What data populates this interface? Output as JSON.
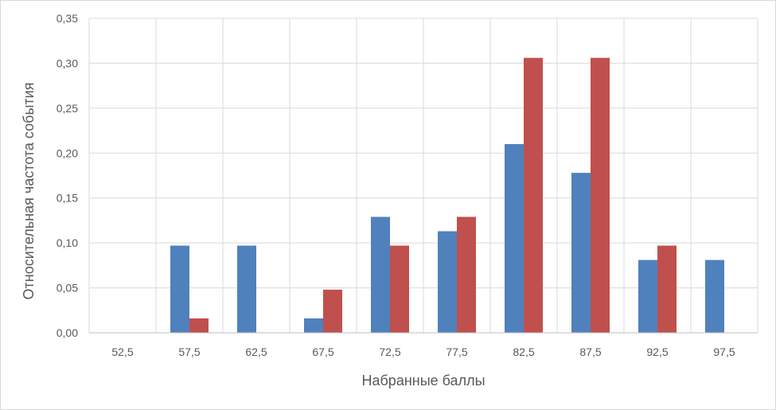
{
  "chart_data": {
    "type": "bar",
    "title": "",
    "xlabel": "Набранные баллы",
    "ylabel": "Относительная частота события",
    "categories": [
      "52,5",
      "57,5",
      "62,5",
      "67,5",
      "72,5",
      "77,5",
      "82,5",
      "87,5",
      "92,5",
      "97,5"
    ],
    "series": [
      {
        "color": "#4f81bd",
        "values": [
          0,
          0.097,
          0.097,
          0.016,
          0.129,
          0.113,
          0.21,
          0.178,
          0.081,
          0.081
        ]
      },
      {
        "color": "#c0504d",
        "values": [
          0,
          0.016,
          0,
          0.048,
          0.097,
          0.129,
          0.306,
          0.306,
          0.097,
          0
        ]
      }
    ],
    "ylim": [
      0,
      0.35
    ],
    "y_ticks": [
      "0,00",
      "0,05",
      "0,10",
      "0,15",
      "0,20",
      "0,25",
      "0,30",
      "0,35"
    ],
    "grid": "vertical and horizontal",
    "legend": "none"
  }
}
